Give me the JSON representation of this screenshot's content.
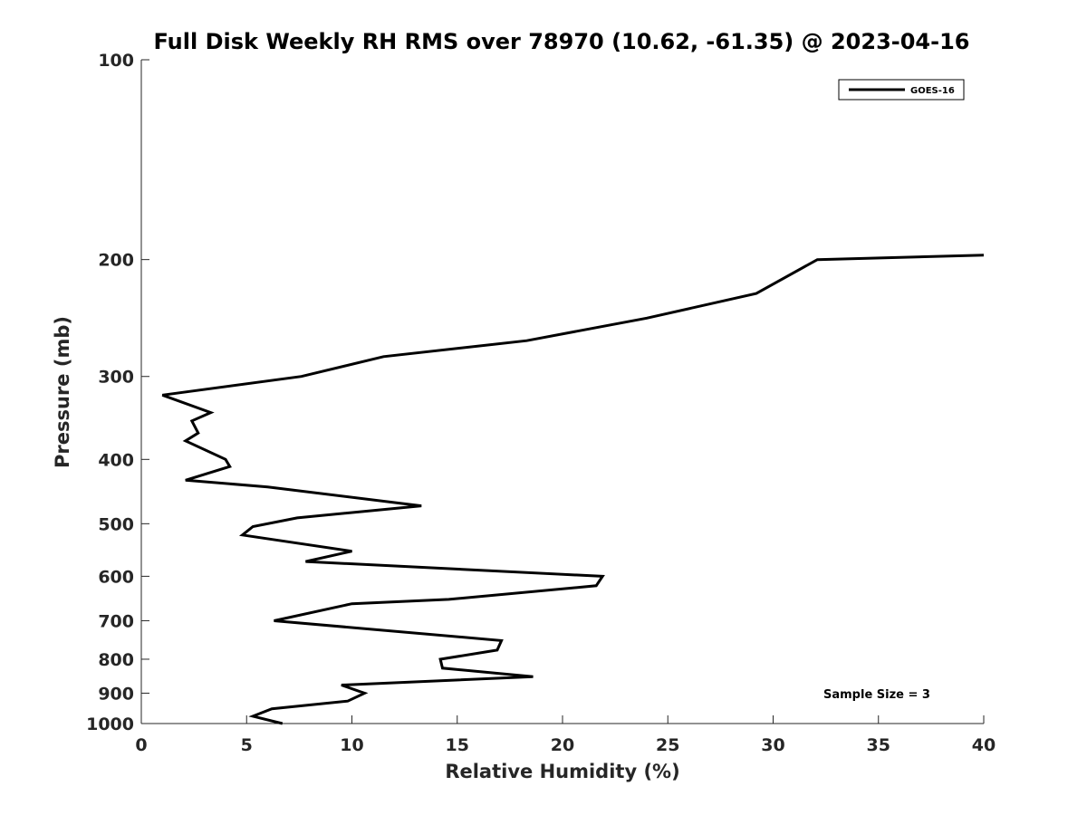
{
  "chart_data": {
    "type": "line",
    "title": "Full Disk Weekly RH RMS over 78970 (10.62, -61.35) @ 2023-04-16",
    "xlabel": "Relative Humidity (%)",
    "ylabel": "Pressure (mb)",
    "xlim": [
      0,
      40
    ],
    "ylim": [
      100,
      1000
    ],
    "y_scale": "log",
    "y_reversed": true,
    "xticks": [
      0,
      5,
      10,
      15,
      20,
      25,
      30,
      35,
      40
    ],
    "yticks": [
      100,
      200,
      300,
      400,
      500,
      600,
      700,
      800,
      900,
      1000
    ],
    "grid": false,
    "legend": "top-right",
    "annotation": "Sample Size = 3",
    "series": [
      {
        "name": "GOES-16",
        "color": "#000000",
        "x": [
          6.7,
          5.3,
          6.2,
          9.8,
          10.6,
          9.5,
          18.6,
          14.3,
          14.2,
          16.9,
          17.1,
          6.3,
          10.0,
          14.6,
          21.6,
          21.9,
          7.8,
          10.0,
          4.8,
          5.3,
          7.4,
          13.3,
          6.0,
          2.1,
          4.2,
          4.0,
          2.1,
          2.7,
          2.4,
          3.3,
          1.0,
          7.6,
          11.5,
          18.3,
          24.0,
          29.2,
          32.1,
          40.0
        ],
        "y": [
          1000,
          975,
          950,
          925,
          900,
          875,
          850,
          825,
          800,
          775,
          750,
          700,
          660,
          650,
          620,
          600,
          570,
          550,
          520,
          505,
          490,
          470,
          440,
          430,
          410,
          400,
          375,
          365,
          350,
          340,
          320,
          300,
          280,
          265,
          245,
          225,
          200,
          197
        ]
      }
    ]
  }
}
